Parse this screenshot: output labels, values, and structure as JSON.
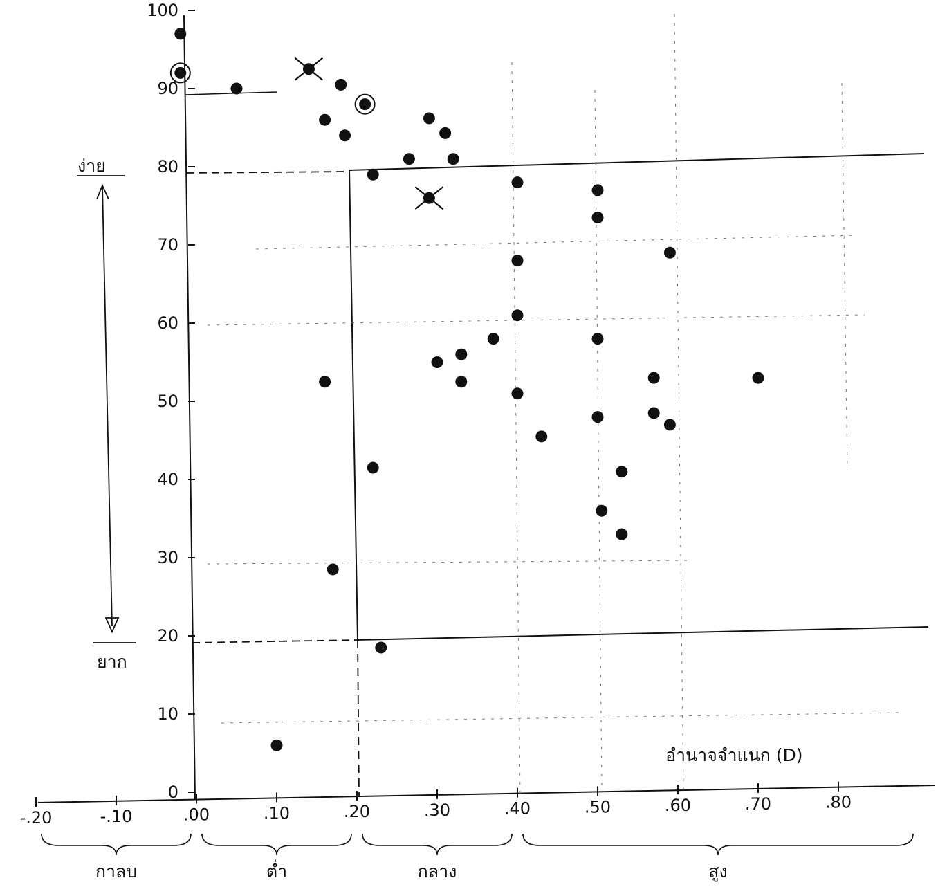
{
  "chart_data": {
    "type": "scatter",
    "title": "",
    "xlabel": "อำนาจจำแนก (D)",
    "ylabel": "",
    "xlim": [
      -0.2,
      0.9
    ],
    "ylim": [
      0,
      100
    ],
    "x_tick_labels": [
      "-.20",
      "-.10",
      ".00",
      ".10",
      ".20",
      ".30",
      ".40",
      ".50",
      ".60",
      ".70",
      ".80"
    ],
    "x_tick_values": [
      -0.2,
      -0.1,
      0.0,
      0.1,
      0.2,
      0.3,
      0.4,
      0.5,
      0.6,
      0.7,
      0.8
    ],
    "y_tick_labels": [
      "0",
      "10",
      "20",
      "30",
      "40",
      "50",
      "60",
      "70",
      "80",
      "90",
      "100"
    ],
    "y_tick_values": [
      0,
      10,
      20,
      30,
      40,
      50,
      60,
      70,
      80,
      90,
      100
    ],
    "difficulty_labels": {
      "easy": "ง่าย",
      "hard": "ยาก"
    },
    "discrimination_groups": [
      {
        "label": "กาลบ",
        "range": [
          -0.2,
          0.0
        ]
      },
      {
        "label": "ต่ำ",
        "range": [
          0.0,
          0.2
        ]
      },
      {
        "label": "กลาง",
        "range": [
          0.2,
          0.4
        ]
      },
      {
        "label": "สูง",
        "range": [
          0.4,
          0.9
        ]
      }
    ],
    "selection_region": {
      "x_min": 0.2,
      "y_min": 20,
      "y_max": 80
    },
    "points": [
      {
        "x": -0.02,
        "y": 97,
        "mark": "dot"
      },
      {
        "x": -0.02,
        "y": 92,
        "mark": "circled"
      },
      {
        "x": 0.05,
        "y": 90,
        "mark": "dot"
      },
      {
        "x": 0.14,
        "y": 92.5,
        "mark": "crossed"
      },
      {
        "x": 0.18,
        "y": 90.5,
        "mark": "dot"
      },
      {
        "x": 0.21,
        "y": 88,
        "mark": "circled"
      },
      {
        "x": 0.16,
        "y": 86,
        "mark": "dot"
      },
      {
        "x": 0.185,
        "y": 84,
        "mark": "dot"
      },
      {
        "x": 0.29,
        "y": 86.2,
        "mark": "dot"
      },
      {
        "x": 0.31,
        "y": 84.3,
        "mark": "dot"
      },
      {
        "x": 0.265,
        "y": 81,
        "mark": "dot"
      },
      {
        "x": 0.32,
        "y": 81,
        "mark": "dot"
      },
      {
        "x": 0.22,
        "y": 79,
        "mark": "dot"
      },
      {
        "x": 0.29,
        "y": 76,
        "mark": "crossed"
      },
      {
        "x": 0.4,
        "y": 78,
        "mark": "dot"
      },
      {
        "x": 0.5,
        "y": 77,
        "mark": "dot"
      },
      {
        "x": 0.5,
        "y": 73.5,
        "mark": "dot"
      },
      {
        "x": 0.4,
        "y": 68,
        "mark": "dot"
      },
      {
        "x": 0.59,
        "y": 69,
        "mark": "dot"
      },
      {
        "x": 0.4,
        "y": 61,
        "mark": "dot"
      },
      {
        "x": 0.37,
        "y": 58,
        "mark": "dot"
      },
      {
        "x": 0.5,
        "y": 58,
        "mark": "dot"
      },
      {
        "x": 0.33,
        "y": 56,
        "mark": "dot"
      },
      {
        "x": 0.3,
        "y": 55,
        "mark": "dot"
      },
      {
        "x": 0.16,
        "y": 52.5,
        "mark": "dot"
      },
      {
        "x": 0.33,
        "y": 52.5,
        "mark": "dot"
      },
      {
        "x": 0.57,
        "y": 53,
        "mark": "dot"
      },
      {
        "x": 0.7,
        "y": 53,
        "mark": "dot"
      },
      {
        "x": 0.4,
        "y": 51,
        "mark": "dot"
      },
      {
        "x": 0.57,
        "y": 48.5,
        "mark": "dot"
      },
      {
        "x": 0.5,
        "y": 48,
        "mark": "dot"
      },
      {
        "x": 0.59,
        "y": 47,
        "mark": "dot"
      },
      {
        "x": 0.43,
        "y": 45.5,
        "mark": "dot"
      },
      {
        "x": 0.22,
        "y": 41.5,
        "mark": "dot"
      },
      {
        "x": 0.53,
        "y": 41,
        "mark": "dot"
      },
      {
        "x": 0.505,
        "y": 36,
        "mark": "dot"
      },
      {
        "x": 0.53,
        "y": 33,
        "mark": "dot"
      },
      {
        "x": 0.17,
        "y": 28.5,
        "mark": "dot"
      },
      {
        "x": 0.23,
        "y": 18.5,
        "mark": "dot"
      },
      {
        "x": 0.1,
        "y": 6,
        "mark": "dot"
      }
    ]
  }
}
